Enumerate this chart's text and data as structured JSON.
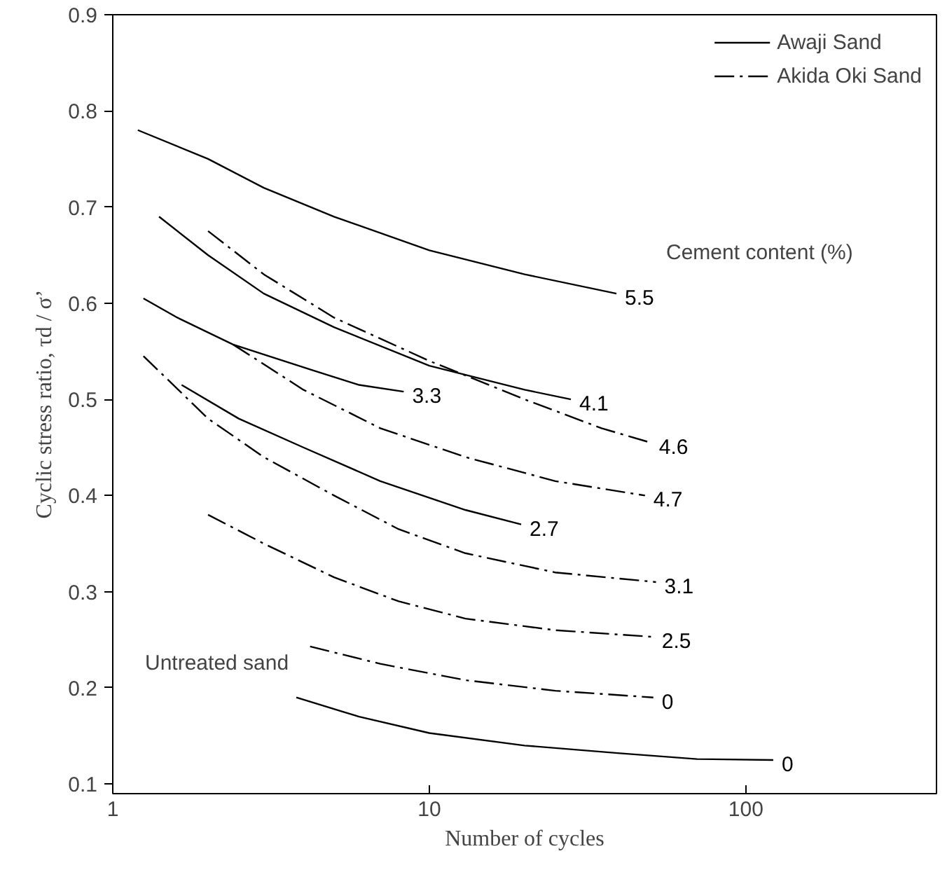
{
  "chart_data": {
    "type": "line",
    "xlabel": "Number of cycles",
    "ylabel": "Cyclic stress ratio, τd / σ’",
    "log": "x",
    "xlim": [
      1,
      400
    ],
    "xticks": [
      1,
      10,
      100
    ],
    "ylim": [
      0.09,
      0.9
    ],
    "yticks": [
      0.1,
      0.2,
      0.3,
      0.4,
      0.5,
      0.6,
      0.7,
      0.8,
      0.9
    ],
    "grid": false,
    "marker": "none",
    "annotations": [
      "Awaji Sand",
      "Akida Oki Sand",
      "Cement content (%)",
      "Untreated sand"
    ],
    "series": [
      {
        "name": "5.5",
        "color": "#000000",
        "line_style": "solid",
        "x": [
          1.2,
          2,
          3,
          5,
          10,
          20,
          39
        ],
        "values": [
          0.78,
          0.75,
          0.72,
          0.69,
          0.655,
          0.63,
          0.61
        ]
      },
      {
        "name": "4.1",
        "color": "#000000",
        "line_style": "solid",
        "x": [
          1.4,
          2,
          3,
          5,
          10,
          20,
          28
        ],
        "values": [
          0.69,
          0.65,
          0.61,
          0.575,
          0.535,
          0.51,
          0.5
        ]
      },
      {
        "name": "4.6",
        "color": "#000000",
        "line_style": "dashdot",
        "x": [
          2,
          3,
          5,
          10,
          20,
          35,
          50
        ],
        "values": [
          0.675,
          0.63,
          0.585,
          0.54,
          0.5,
          0.47,
          0.455
        ]
      },
      {
        "name": "3.3",
        "color": "#000000",
        "line_style": "solid",
        "x": [
          1.25,
          1.6,
          2.4,
          4.3,
          6,
          8.3
        ],
        "values": [
          0.605,
          0.585,
          0.557,
          0.53,
          0.515,
          0.508
        ]
      },
      {
        "name": "4.7",
        "color": "#000000",
        "line_style": "dashdot",
        "x": [
          2.4,
          4,
          7,
          13,
          25,
          48
        ],
        "values": [
          0.557,
          0.51,
          0.47,
          0.44,
          0.415,
          0.4
        ]
      },
      {
        "name": "2.7",
        "color": "#000000",
        "line_style": "solid",
        "x": [
          1.65,
          2.5,
          4,
          7,
          13,
          19.5
        ],
        "values": [
          0.515,
          0.48,
          0.45,
          0.415,
          0.385,
          0.37
        ]
      },
      {
        "name": "3.1",
        "color": "#000000",
        "line_style": "dashdot",
        "x": [
          1.25,
          2,
          3,
          5,
          8,
          13,
          25,
          52
        ],
        "values": [
          0.545,
          0.48,
          0.44,
          0.4,
          0.365,
          0.34,
          0.32,
          0.31
        ]
      },
      {
        "name": "2.5",
        "color": "#000000",
        "line_style": "dashdot",
        "x": [
          2,
          3,
          5,
          8,
          13,
          25,
          51
        ],
        "values": [
          0.38,
          0.35,
          0.315,
          0.29,
          0.272,
          0.26,
          0.253
        ]
      },
      {
        "name": "0",
        "color": "#000000",
        "line_style": "dashdot",
        "x": [
          4.2,
          7,
          13,
          25,
          51
        ],
        "values": [
          0.243,
          0.225,
          0.208,
          0.197,
          0.19
        ]
      },
      {
        "name": "0",
        "color": "#000000",
        "line_style": "solid",
        "x": [
          3.8,
          6,
          10,
          20,
          40,
          70,
          122
        ],
        "values": [
          0.19,
          0.17,
          0.153,
          0.14,
          0.132,
          0.126,
          0.125
        ]
      }
    ]
  }
}
